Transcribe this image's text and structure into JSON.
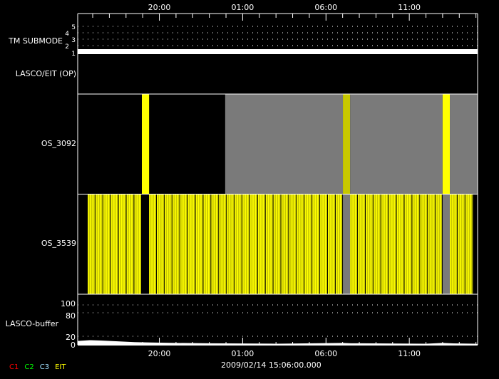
{
  "chart_data": {
    "type": "timeline",
    "time_start": "2009/02/13 15:06",
    "time_end": "2009/02/14 15:06",
    "date_label": "2009/02/14 15:06:00.000",
    "x_tick_labels": [
      "20:00",
      "01:00",
      "06:00",
      "11:00"
    ],
    "x_tick_hours": [
      "20:00",
      "01:00",
      "06:00",
      "11:00"
    ],
    "minor_tick_interval_hours": 1,
    "panels": [
      {
        "label": "TM SUBMODE",
        "y_ticks": [
          "1",
          "2",
          "3",
          "4",
          "5"
        ],
        "value": 1
      },
      {
        "label": "LASCO/EIT (OP)",
        "events": []
      },
      {
        "label": "OS_3092",
        "segments": [
          {
            "start": "18:57",
            "end": "19:23",
            "color": "#ffff00"
          },
          {
            "start": "23:57",
            "end": "07:01",
            "color": "#7a7a7a"
          },
          {
            "start": "07:01",
            "end": "07:27",
            "color": "#c8c800"
          },
          {
            "start": "07:27",
            "end": "13:00",
            "color": "#7a7a7a"
          },
          {
            "start": "13:00",
            "end": "13:26",
            "color": "#ffff00"
          },
          {
            "start": "13:26",
            "end": "15:06",
            "color": "#7a7a7a"
          }
        ]
      },
      {
        "label": "OS_3539",
        "cadence_min": 28,
        "segments": [
          {
            "start": "15:42",
            "end": "18:57",
            "color": "#ffff00"
          },
          {
            "start": "19:23",
            "end": "07:01",
            "color": "#ffff00"
          },
          {
            "start": "07:01",
            "end": "07:27",
            "color": "#7a7a7a"
          },
          {
            "start": "07:27",
            "end": "13:00",
            "color": "#ffff00"
          },
          {
            "start": "13:00",
            "end": "13:26",
            "color": "#7a7a7a"
          },
          {
            "start": "13:26",
            "end": "14:53",
            "color": "#ffff00"
          }
        ]
      },
      {
        "label": "LASCO-buffer",
        "y_ticks": [
          "0",
          "20",
          "80",
          "100"
        ],
        "ylim": [
          0,
          100
        ],
        "x": [
          "15:06",
          "15:30",
          "15:50",
          "16:30",
          "17:30",
          "18:30",
          "19:30",
          "21:00",
          "23:00",
          "03:00",
          "07:00",
          "07:30",
          "08:00",
          "12:00",
          "13:00",
          "13:30",
          "15:00"
        ],
        "values": [
          8,
          9,
          10,
          9,
          7,
          5,
          4,
          3,
          2,
          1,
          3,
          2,
          2,
          1,
          3,
          2,
          1
        ]
      }
    ],
    "legend": [
      {
        "name": "C1",
        "color": "#ff0000"
      },
      {
        "name": "C2",
        "color": "#00ff00"
      },
      {
        "name": "C3",
        "color": "#a0e0ff"
      },
      {
        "name": "EIT",
        "color": "#ffff00"
      }
    ]
  }
}
